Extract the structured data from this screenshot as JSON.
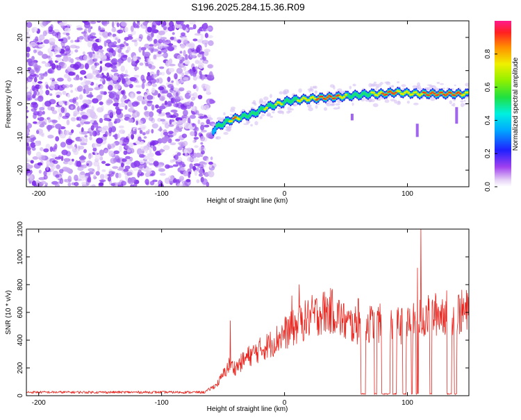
{
  "title": "S196.2025.284.15.36.R09",
  "colors": {
    "signal": "#e8261f",
    "noise_dots": "#8a3cf0",
    "axis": "#000000"
  },
  "chart_data": [
    {
      "id": "spectrogram",
      "type": "heatmap",
      "xlabel": "Height of straight line (km)",
      "ylabel": "Frequency (Hz)",
      "xlim": [
        -210,
        150
      ],
      "ylim": [
        -25,
        25
      ],
      "xticks": [
        -200,
        -100,
        0,
        100
      ],
      "yticks": [
        -20,
        -10,
        0,
        10,
        20
      ],
      "noise_region_x": [
        -210,
        -60
      ],
      "ridge": {
        "x": [
          -58,
          -55,
          -50,
          -45,
          -40,
          -35,
          -30,
          -25,
          -20,
          -15,
          -10,
          -5,
          0,
          5,
          10,
          15,
          20,
          25,
          30,
          40,
          50,
          60,
          70,
          80,
          90,
          100,
          110,
          120,
          130,
          140,
          150
        ],
        "freq": [
          -8,
          -7,
          -6,
          -5,
          -4.5,
          -4,
          -3.5,
          -3,
          -2,
          -1,
          -0.5,
          0,
          0.5,
          1,
          1.2,
          1.3,
          1.5,
          1.6,
          1.8,
          2,
          2.3,
          2.6,
          3,
          3,
          3.5,
          3.2,
          3.0,
          3.0,
          3.0,
          3.0,
          3.0
        ],
        "amplitude": [
          0.3,
          0.35,
          0.45,
          0.6,
          0.9,
          0.55,
          0.5,
          0.5,
          0.5,
          0.65,
          0.5,
          0.75,
          0.5,
          0.55,
          0.6,
          0.7,
          0.75,
          0.8,
          0.95,
          0.95,
          0.6,
          0.55,
          0.6,
          0.8,
          0.85,
          0.6,
          0.75,
          0.95,
          1.0,
          0.95,
          0.6
        ]
      },
      "colorbar": {
        "label": "Normalized spectral amplitude",
        "range": [
          0,
          1
        ],
        "ticks": [
          "0.0",
          "0.2",
          "0.4",
          "0.6",
          "0.8"
        ],
        "tick_values": [
          0,
          0.2,
          0.4,
          0.6,
          0.8
        ]
      }
    },
    {
      "id": "snr",
      "type": "line",
      "xlabel": "Height of straight line (km)",
      "ylabel": "SNR (10 * v/v)",
      "xlim": [
        -210,
        150
      ],
      "ylim": [
        0,
        1200
      ],
      "xticks": [
        -200,
        -100,
        0,
        100
      ],
      "yticks": [
        0,
        200,
        400,
        600,
        800,
        1000,
        1200
      ],
      "envelope": {
        "x": [
          -210,
          -65,
          -55,
          -45,
          -40,
          -30,
          -20,
          -10,
          0,
          10,
          20,
          30,
          40,
          50,
          60,
          70,
          80,
          90,
          100,
          110,
          120,
          130,
          140,
          150
        ],
        "y": [
          25,
          25,
          80,
          220,
          200,
          280,
          330,
          380,
          450,
          500,
          560,
          600,
          610,
          520,
          500,
          520,
          520,
          510,
          500,
          550,
          580,
          600,
          600,
          600
        ]
      },
      "dropouts": [
        [
          62,
          66
        ],
        [
          73,
          75
        ],
        [
          79,
          86
        ],
        [
          88,
          91
        ],
        [
          96,
          99
        ],
        [
          103,
          104
        ],
        [
          107,
          109
        ],
        [
          118,
          120
        ],
        [
          132,
          136
        ],
        [
          138,
          140
        ]
      ],
      "spikes": [
        {
          "x": -44,
          "y": 540
        },
        {
          "x": 6,
          "y": 720
        },
        {
          "x": 12,
          "y": 800
        },
        {
          "x": 60,
          "y": 700
        },
        {
          "x": 108,
          "y": 920
        },
        {
          "x": 111,
          "y": 1210
        },
        {
          "x": 115,
          "y": 650
        }
      ]
    }
  ]
}
